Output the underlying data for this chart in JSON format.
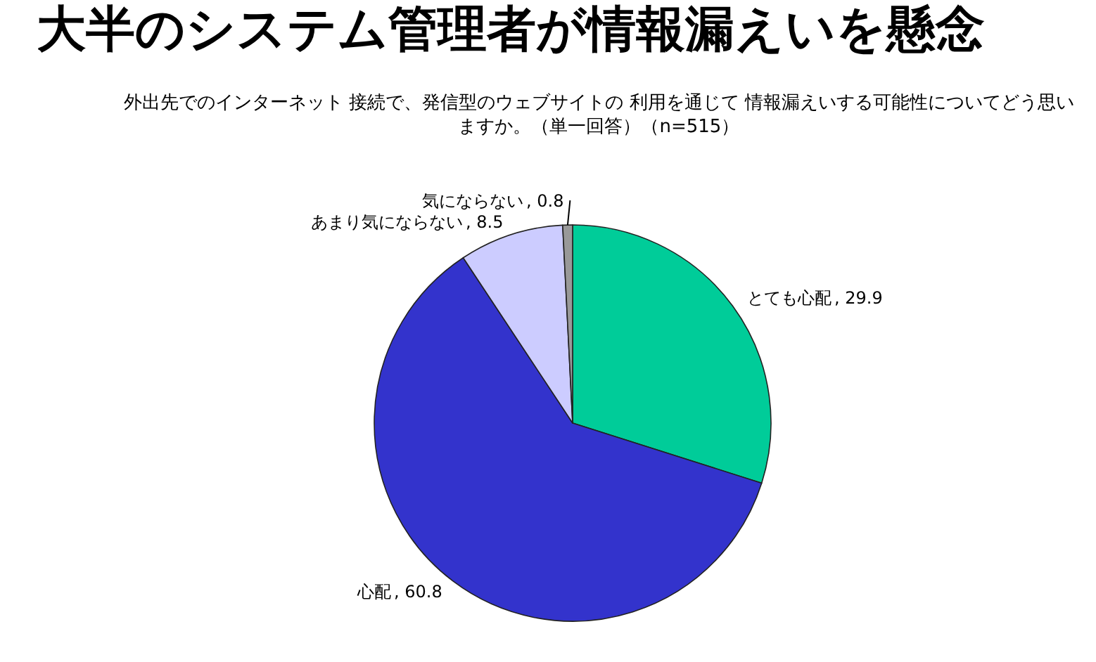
{
  "chart_data": {
    "type": "pie",
    "title": "大半のシステム管理者が情報漏えいを懸念",
    "subtitle": "外出先でのインターネット 接続で、発信型のウェブサイトの 利用を通じて 情報漏えいする可能性についてどう思いますか。（単一回答）（n=515）",
    "categories": [
      "とても心配",
      "心配",
      "あまり気にならない",
      "気にならない"
    ],
    "values": [
      29.9,
      60.8,
      8.5,
      0.8
    ],
    "value_labels": [
      ", 29.9",
      ", 60.8",
      ", 8.5",
      ", 0.8"
    ],
    "colors": [
      "#00cc99",
      "#3333cc",
      "#ccccff",
      "#999999"
    ]
  }
}
